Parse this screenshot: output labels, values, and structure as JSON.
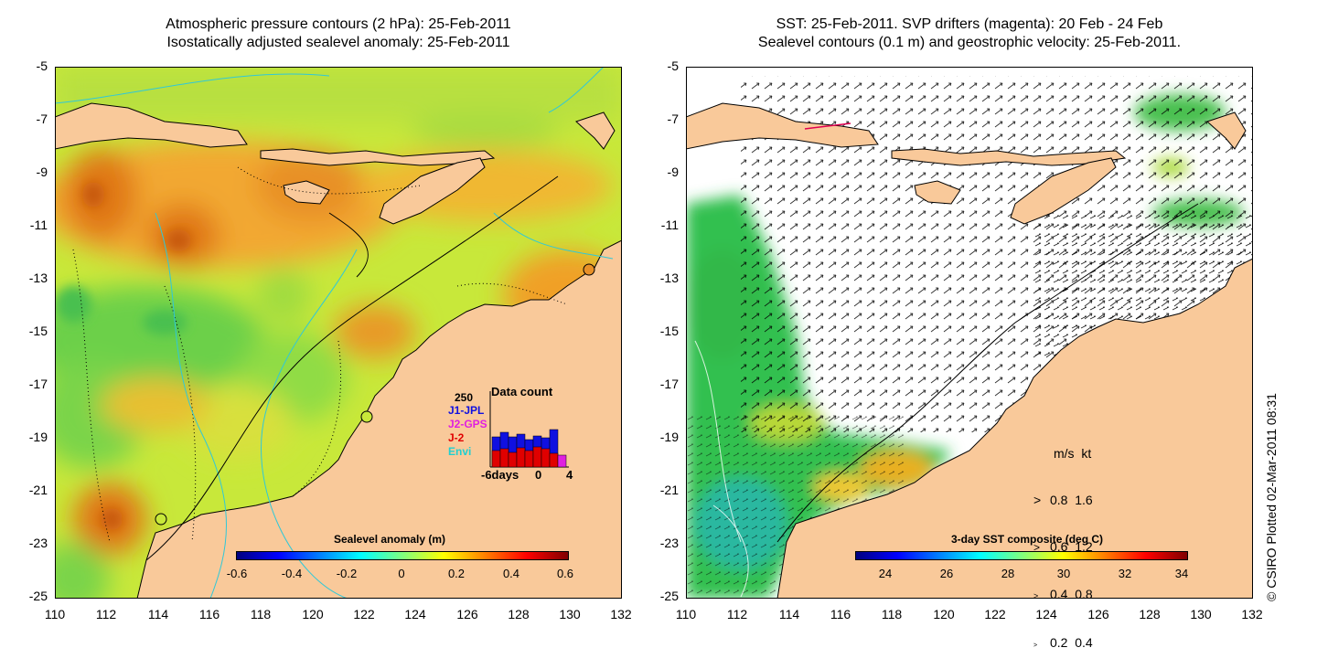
{
  "left_panel": {
    "title_line1": "Atmospheric pressure contours (2 hPa): 25-Feb-2011",
    "title_line2": "Isostatically adjusted sealevel anomaly: 25-Feb-2011",
    "colorbar": {
      "title": "Sealevel anomaly (m)",
      "ticks": [
        "-0.6",
        "-0.4",
        "-0.2",
        "0",
        "0.2",
        "0.4",
        "0.6"
      ]
    },
    "inset": {
      "count_max": "250",
      "title": "Data count",
      "legend": [
        {
          "label": "J1-JPL",
          "color": "#1010e0"
        },
        {
          "label": "J2-GPS",
          "color": "#e020e0"
        },
        {
          "label": "J-2",
          "color": "#e00000"
        },
        {
          "label": "Envi",
          "color": "#20d0d0"
        }
      ],
      "xticks": [
        "-6days",
        "0",
        "4"
      ]
    }
  },
  "right_panel": {
    "title_line1": "SST: 25-Feb-2011. SVP drifters (magenta): 20 Feb - 24 Feb",
    "title_line2": "Sealevel contours (0.1 m) and geostrophic velocity: 25-Feb-2011.",
    "colorbar": {
      "title": "3-day SST composite (deg C)",
      "ticks": [
        "24",
        "26",
        "28",
        "30",
        "32",
        "34"
      ]
    },
    "velocity_legend": {
      "header": "m/s  kt",
      "rows": [
        "0.8  1.6",
        "0.6  1.2",
        "0.4  0.8",
        "0.2  0.4"
      ]
    }
  },
  "axes": {
    "y_ticks": [
      "-5",
      "-7",
      "-9",
      "-11",
      "-13",
      "-15",
      "-17",
      "-19",
      "-21",
      "-23",
      "-25"
    ],
    "x_ticks": [
      "110",
      "112",
      "114",
      "116",
      "118",
      "120",
      "122",
      "124",
      "126",
      "128",
      "130",
      "132"
    ]
  },
  "credit": "© CSIRO Plotted 02-Mar-2011 08:31",
  "colors": {
    "land": "#f9c99a",
    "sla_colormap": [
      "#00007f",
      "#0000ff",
      "#007fff",
      "#00ffff",
      "#7fff7f",
      "#ffff00",
      "#ff7f00",
      "#ff0000",
      "#7f0000"
    ],
    "sst_colormap": [
      "#00007f",
      "#0000ff",
      "#007fff",
      "#00ffff",
      "#7fff7f",
      "#ffff00",
      "#ff7f00",
      "#ff0000",
      "#7f0000"
    ]
  }
}
